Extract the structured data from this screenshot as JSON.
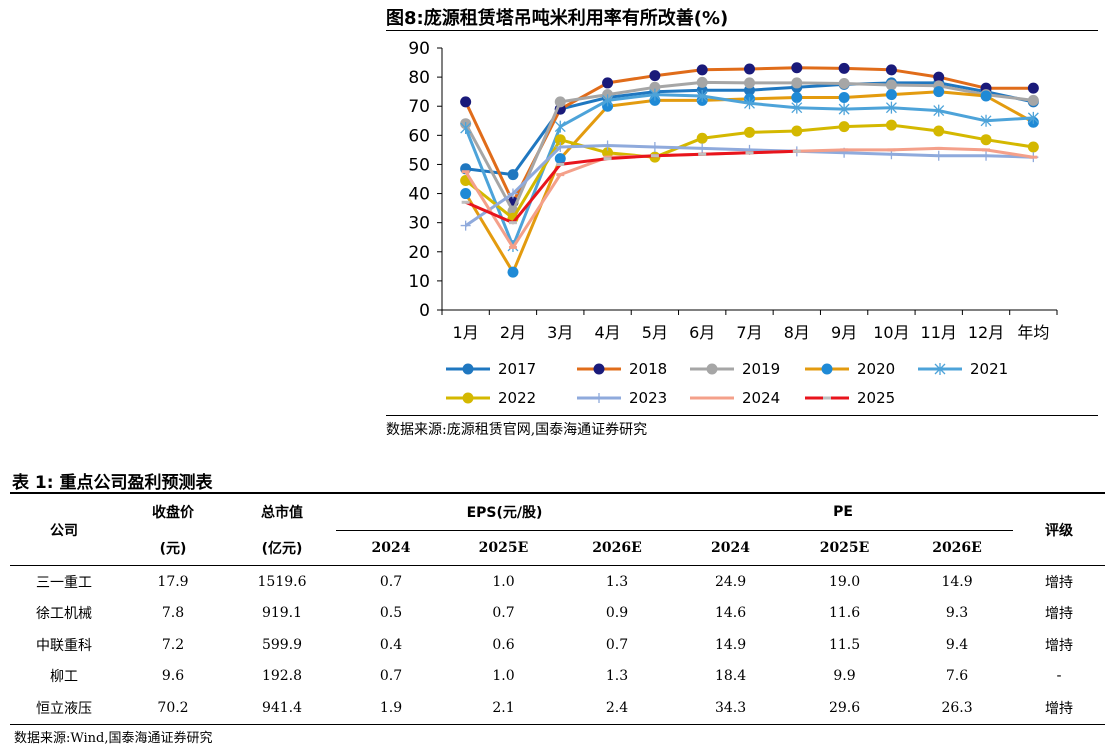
{
  "figure": {
    "title": "图8:庞源租赁塔吊吨米利用率有所改善(%)",
    "source": "数据来源:庞源租赁官网,国泰海通证券研究"
  },
  "chart_data": {
    "type": "line",
    "categories": [
      "1月",
      "2月",
      "3月",
      "4月",
      "5月",
      "6月",
      "7月",
      "8月",
      "9月",
      "10月",
      "11月",
      "12月",
      "年均"
    ],
    "ylim": [
      0,
      90
    ],
    "yticks": [
      0,
      10,
      20,
      30,
      40,
      50,
      60,
      70,
      80,
      90
    ],
    "grid": false,
    "legend_position": "bottom",
    "series": [
      {
        "name": "2017",
        "color": "#1f77c0",
        "marker": "circle",
        "values": [
          48.5,
          46.5,
          69,
          73,
          75,
          75.5,
          75.5,
          76.5,
          77.5,
          78,
          78,
          75,
          71.5
        ]
      },
      {
        "name": "2018",
        "color": "#e06c1a",
        "marker": "circle-dark",
        "values": [
          71.5,
          37,
          69,
          78,
          80.5,
          82.5,
          82.8,
          83.2,
          83,
          82.5,
          80,
          76.2,
          76.2
        ]
      },
      {
        "name": "2019",
        "color": "#a6a6a6",
        "marker": "circle",
        "values": [
          64,
          34,
          71.5,
          74,
          76.5,
          78.2,
          78,
          78,
          77.8,
          77.3,
          77,
          74,
          72
        ]
      },
      {
        "name": "2020",
        "color": "#e39b0f",
        "marker": "circle-blue",
        "values": [
          40,
          13,
          52,
          70,
          72,
          72,
          72.5,
          73,
          73,
          74,
          75,
          73.5,
          64.5
        ]
      },
      {
        "name": "2021",
        "color": "#4da3d9",
        "marker": "star",
        "values": [
          62.5,
          22,
          63,
          72,
          74,
          73.5,
          71,
          69.5,
          69,
          69.5,
          68.5,
          65,
          66
        ]
      },
      {
        "name": "2022",
        "color": "#d4b800",
        "marker": "circle",
        "values": [
          44.5,
          31.5,
          58.5,
          54,
          52.5,
          59,
          61,
          61.5,
          63,
          63.5,
          61.5,
          58.5,
          56
        ]
      },
      {
        "name": "2023",
        "color": "#8faadc",
        "marker": "plus",
        "values": [
          29,
          40,
          56,
          56.5,
          56,
          55.5,
          55,
          54.5,
          54,
          53.5,
          53,
          53,
          52.5
        ]
      },
      {
        "name": "2024",
        "color": "#f4a08a",
        "marker": "dash",
        "values": [
          47.5,
          21.5,
          46.5,
          52.5,
          53,
          53.5,
          54,
          54.5,
          55,
          55,
          55.5,
          55,
          52.5
        ]
      },
      {
        "name": "2025",
        "color": "#e8141c",
        "marker": "dash-gray",
        "values": [
          37,
          30,
          50,
          52,
          53,
          53.5,
          54,
          54.5,
          null,
          null,
          null,
          null,
          null
        ]
      }
    ]
  },
  "table": {
    "title": "表 1: 重点公司盈利预测表",
    "headers": {
      "company": "公司",
      "close": "收盘价",
      "close_unit": "(元)",
      "mktcap": "总市值",
      "mktcap_unit": "(亿元)",
      "eps": "EPS(元/股)",
      "pe": "PE",
      "rating": "评级",
      "years": [
        "2024",
        "2025E",
        "2026E",
        "2024",
        "2025E",
        "2026E"
      ]
    },
    "rows": [
      {
        "name": "三一重工",
        "close": "17.9",
        "mktcap": "1519.6",
        "eps": [
          "0.7",
          "1.0",
          "1.3"
        ],
        "pe": [
          "24.9",
          "19.0",
          "14.9"
        ],
        "rating": "增持"
      },
      {
        "name": "徐工机械",
        "close": "7.8",
        "mktcap": "919.1",
        "eps": [
          "0.5",
          "0.7",
          "0.9"
        ],
        "pe": [
          "14.6",
          "11.6",
          "9.3"
        ],
        "rating": "增持"
      },
      {
        "name": "中联重科",
        "close": "7.2",
        "mktcap": "599.9",
        "eps": [
          "0.4",
          "0.6",
          "0.7"
        ],
        "pe": [
          "14.9",
          "11.5",
          "9.4"
        ],
        "rating": "增持"
      },
      {
        "name": "柳工",
        "close": "9.6",
        "mktcap": "192.8",
        "eps": [
          "0.7",
          "1.0",
          "1.3"
        ],
        "pe": [
          "18.4",
          "9.9",
          "7.6"
        ],
        "rating": "-"
      },
      {
        "name": "恒立液压",
        "close": "70.2",
        "mktcap": "941.4",
        "eps": [
          "1.9",
          "2.1",
          "2.4"
        ],
        "pe": [
          "34.3",
          "29.6",
          "26.3"
        ],
        "rating": "增持"
      }
    ],
    "source": "数据来源:Wind,国泰海通证券研究"
  }
}
